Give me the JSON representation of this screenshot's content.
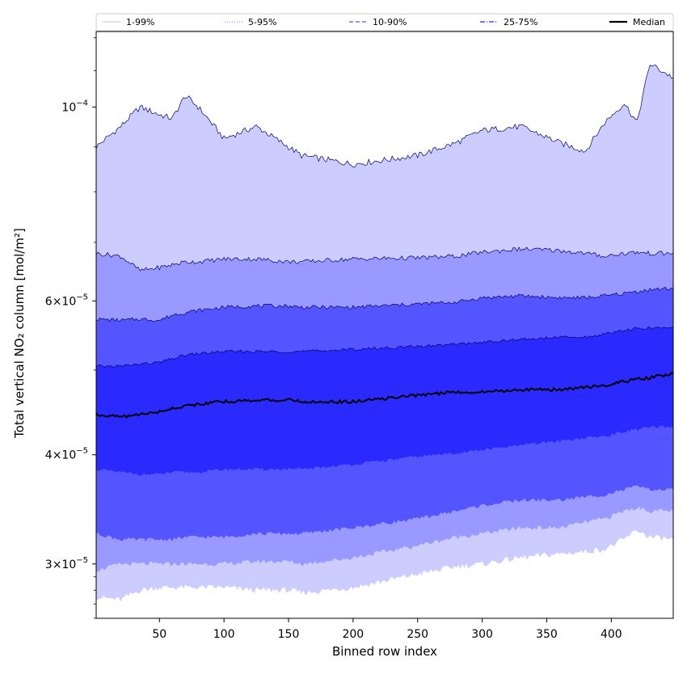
{
  "chart_data": {
    "type": "area",
    "xlabel": "Binned row index",
    "ylabel": "Total vertical NO₂ column [mol/m²]",
    "xlim": [
      1,
      448
    ],
    "ylim": [
      2.6e-05,
      0.000122
    ],
    "y_scale": "log",
    "grid": false,
    "legend_position": "top",
    "x_ticks": [
      50,
      100,
      150,
      200,
      250,
      300,
      350,
      400
    ],
    "y_ticks": [
      {
        "value": 3e-05,
        "mantissa": "3",
        "exponent": "−5"
      },
      {
        "value": 4e-05,
        "mantissa": "4",
        "exponent": "−5"
      },
      {
        "value": 6e-05,
        "mantissa": "6",
        "exponent": "−5"
      },
      {
        "value": 0.0001,
        "mantissa": "",
        "exponent": "−4"
      }
    ],
    "x": [
      1,
      20,
      35,
      50,
      60,
      70,
      80,
      100,
      125,
      150,
      160,
      200,
      250,
      280,
      300,
      330,
      360,
      380,
      395,
      410,
      420,
      430,
      448
    ],
    "bands": [
      {
        "name": "1-99%",
        "color": "#ccccff",
        "lower": [
          2.75e-05,
          2.73e-05,
          2.8e-05,
          2.82e-05,
          2.82e-05,
          2.82e-05,
          2.82e-05,
          2.82e-05,
          2.8e-05,
          2.8e-05,
          2.78e-05,
          2.82e-05,
          2.92e-05,
          2.98e-05,
          3e-05,
          3.05e-05,
          3.08e-05,
          3.1e-05,
          3.12e-05,
          3.2e-05,
          3.28e-05,
          3.22e-05,
          3.2e-05
        ],
        "upper": [
          9e-05,
          9.5e-05,
          0.0001,
          9.8e-05,
          9.7e-05,
          0.000103,
          0.0001,
          9.2e-05,
          9.5e-05,
          9e-05,
          8.8e-05,
          8.6e-05,
          8.8e-05,
          9.1e-05,
          9.4e-05,
          9.5e-05,
          9.1e-05,
          8.9e-05,
          9.6e-05,
          0.000101,
          9.6e-05,
          0.000112,
          0.000108
        ]
      },
      {
        "name": "5-95%",
        "color": "#9999ff",
        "lower": [
          2.95e-05,
          3e-05,
          3e-05,
          3e-05,
          3e-05,
          3e-05,
          3e-05,
          3e-05,
          3.02e-05,
          3.02e-05,
          3e-05,
          3.05e-05,
          3.15e-05,
          3.22e-05,
          3.25e-05,
          3.3e-05,
          3.3e-05,
          3.35e-05,
          3.38e-05,
          3.45e-05,
          3.48e-05,
          3.45e-05,
          3.45e-05
        ],
        "upper": [
          6.8e-05,
          6.75e-05,
          6.5e-05,
          6.55e-05,
          6.6e-05,
          6.65e-05,
          6.65e-05,
          6.7e-05,
          6.7e-05,
          6.65e-05,
          6.65e-05,
          6.7e-05,
          6.72e-05,
          6.75e-05,
          6.82e-05,
          6.88e-05,
          6.85e-05,
          6.8e-05,
          6.75e-05,
          6.8e-05,
          6.82e-05,
          6.8e-05,
          6.8e-05
        ]
      },
      {
        "name": "10-90%",
        "color": "#5555ff",
        "lower": [
          3.25e-05,
          3.2e-05,
          3.2e-05,
          3.2e-05,
          3.2e-05,
          3.22e-05,
          3.22e-05,
          3.22e-05,
          3.25e-05,
          3.25e-05,
          3.25e-05,
          3.3e-05,
          3.38e-05,
          3.45e-05,
          3.5e-05,
          3.55e-05,
          3.55e-05,
          3.58e-05,
          3.6e-05,
          3.65e-05,
          3.68e-05,
          3.65e-05,
          3.65e-05
        ],
        "upper": [
          5.72e-05,
          5.7e-05,
          5.72e-05,
          5.7e-05,
          5.78e-05,
          5.82e-05,
          5.85e-05,
          5.9e-05,
          5.92e-05,
          5.92e-05,
          5.9e-05,
          5.9e-05,
          5.95e-05,
          5.98e-05,
          6.05e-05,
          6.08e-05,
          6.05e-05,
          6.05e-05,
          6.08e-05,
          6.12e-05,
          6.15e-05,
          6.18e-05,
          6.2e-05
        ]
      },
      {
        "name": "25-75%",
        "color": "#2a2aff",
        "lower": [
          3.85e-05,
          3.82e-05,
          3.8e-05,
          3.8e-05,
          3.82e-05,
          3.82e-05,
          3.82e-05,
          3.85e-05,
          3.85e-05,
          3.85e-05,
          3.85e-05,
          3.9e-05,
          3.98e-05,
          4.02e-05,
          4.05e-05,
          4.1e-05,
          4.15e-05,
          4.18e-05,
          4.2e-05,
          4.25e-05,
          4.28e-05,
          4.3e-05,
          4.3e-05
        ],
        "upper": [
          5.05e-05,
          5.05e-05,
          5.08e-05,
          5.1e-05,
          5.15e-05,
          5.2e-05,
          5.22e-05,
          5.25e-05,
          5.25e-05,
          5.25e-05,
          5.25e-05,
          5.28e-05,
          5.32e-05,
          5.35e-05,
          5.38e-05,
          5.42e-05,
          5.45e-05,
          5.45e-05,
          5.5e-05,
          5.55e-05,
          5.58e-05,
          5.58e-05,
          5.6e-05
        ]
      }
    ],
    "median": {
      "name": "Median",
      "color": "#000000",
      "values": [
        4.45e-05,
        4.42e-05,
        4.45e-05,
        4.48e-05,
        4.52e-05,
        4.55e-05,
        4.57e-05,
        4.6e-05,
        4.62e-05,
        4.62e-05,
        4.6e-05,
        4.6e-05,
        4.68e-05,
        4.72e-05,
        4.72e-05,
        4.75e-05,
        4.75e-05,
        4.78e-05,
        4.8e-05,
        4.85e-05,
        4.88e-05,
        4.9e-05,
        4.95e-05
      ]
    },
    "legend": [
      {
        "label": "1-99%",
        "color": "#ccccff",
        "style": "solid"
      },
      {
        "label": "5-95%",
        "color": "#9999ff",
        "style": "dotted"
      },
      {
        "label": "10-90%",
        "color": "#5555ff",
        "style": "dashed"
      },
      {
        "label": "25-75%",
        "color": "#2a2aff",
        "style": "dashdot"
      },
      {
        "label": "Median",
        "color": "#000000",
        "style": "solid-bold"
      }
    ]
  }
}
